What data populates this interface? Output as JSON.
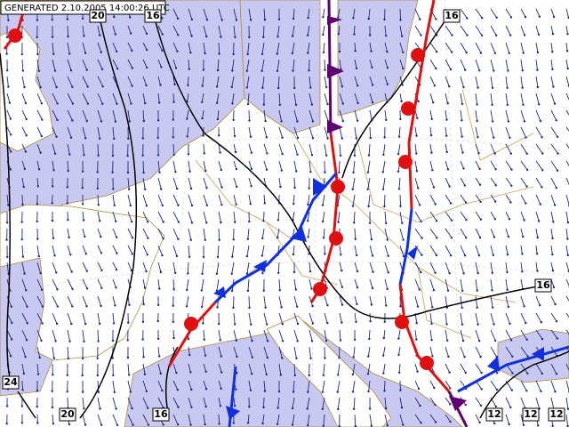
{
  "header": {
    "generated": "GENERATED 2.10.2005 14:00:26 UTC"
  },
  "isobar_labels": [
    "20",
    "16",
    "16",
    "16",
    "24",
    "20",
    "16",
    "12",
    "12",
    "12"
  ]
}
